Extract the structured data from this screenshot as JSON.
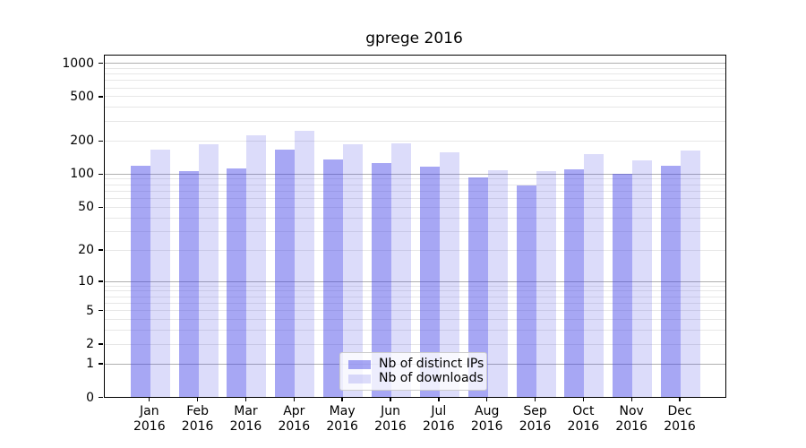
{
  "chart_data": {
    "type": "bar",
    "title": "gprege 2016",
    "categories": [
      "Jan",
      "Feb",
      "Mar",
      "Apr",
      "May",
      "Jun",
      "Jul",
      "Aug",
      "Sep",
      "Oct",
      "Nov",
      "Dec"
    ],
    "year_label": "2016",
    "series": [
      {
        "name": "Nb of distinct IPs",
        "color": "rgba(60,60,230,0.45)",
        "values": [
          116,
          104,
          110,
          164,
          133,
          123,
          114,
          91,
          78,
          108,
          98,
          116
        ]
      },
      {
        "name": "Nb of downloads",
        "color": "rgba(60,60,230,0.18)",
        "values": [
          164,
          182,
          220,
          244,
          184,
          188,
          156,
          106,
          105,
          149,
          132,
          160
        ]
      }
    ],
    "y_axis": {
      "scale": "log1p",
      "ticks": [
        1000,
        500,
        200,
        100,
        50,
        20,
        10,
        5,
        2,
        1,
        0
      ],
      "range_bottom": 0
    },
    "grid": {
      "major_lines": [
        1,
        10,
        100,
        1000
      ],
      "minor_lines": [
        2,
        3,
        4,
        5,
        6,
        7,
        8,
        9,
        20,
        30,
        40,
        50,
        60,
        70,
        80,
        90,
        200,
        300,
        400,
        500,
        600,
        700,
        800,
        900
      ],
      "major_color": "#b0b0b0",
      "minor_color": "#e7e7e7"
    },
    "legend": {
      "position": "lower center"
    }
  }
}
